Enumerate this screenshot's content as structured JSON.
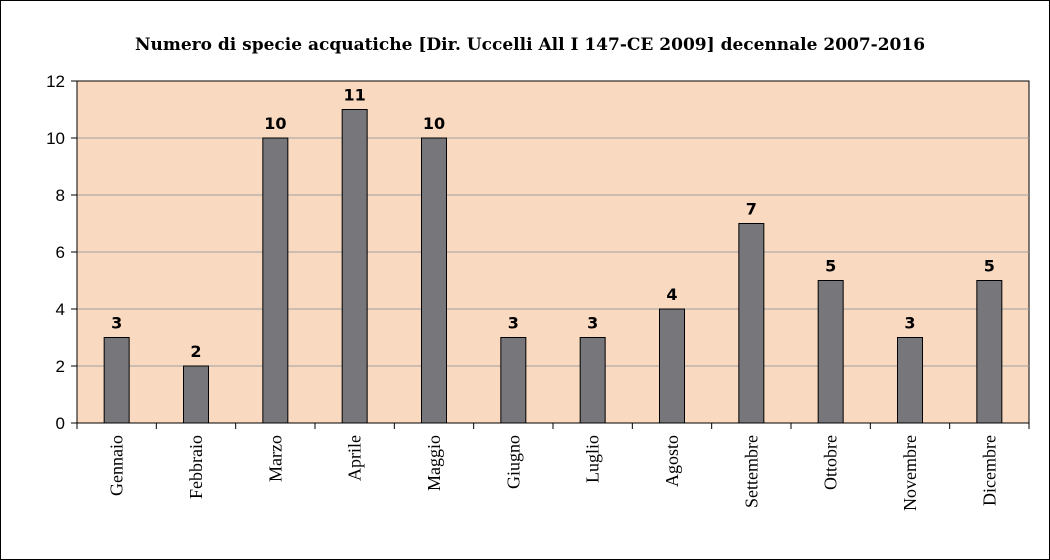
{
  "chart_data": {
    "type": "bar",
    "title": "Numero di specie acquatiche [Dir. Uccelli All I 147-CE 2009] decennale 2007-2016",
    "xlabel": "",
    "ylabel": "",
    "categories": [
      "Gennaio",
      "Febbraio",
      "Marzo",
      "Aprile",
      "Maggio",
      "Giugno",
      "Luglio",
      "Agosto",
      "Settembre",
      "Ottobre",
      "Novembre",
      "Dicembre"
    ],
    "values": [
      3,
      2,
      10,
      11,
      10,
      3,
      3,
      4,
      7,
      5,
      3,
      5
    ],
    "ylim": [
      0,
      12
    ],
    "yticks": [
      0,
      2,
      4,
      6,
      8,
      10,
      12
    ],
    "grid": true,
    "legend": "none",
    "data_labels": true,
    "colors": {
      "plot_background": "#FAD9C1",
      "bar_fill": "#77777B",
      "bar_stroke": "#000000",
      "gridline": "#A0A0A0"
    }
  }
}
